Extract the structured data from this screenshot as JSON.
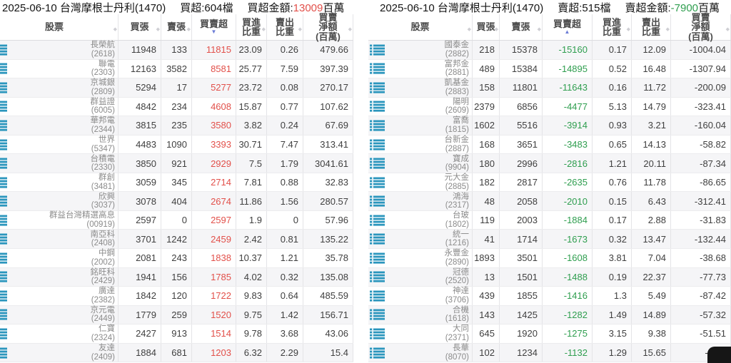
{
  "colors": {
    "red": "#e2504a",
    "green": "#2f9e4f",
    "icon_blue": "#2b96bd",
    "sort_active_blue": "#6b7cd6"
  },
  "icons": {
    "row": "list-icon",
    "sort_desc": "▼",
    "sort_asc": "▲",
    "sort_idle": "◆"
  },
  "tables": [
    {
      "id": "buy",
      "net_color": "net-red",
      "title": {
        "heading": "2025-06-10 台灣摩根士丹利(1470)",
        "count": "買超:604檔",
        "amount_label": "買超金額:",
        "amount_value": "13009",
        "amount_unit": "百萬",
        "amount_class": "amount-red"
      },
      "columns": [
        {
          "lines": [
            "股票"
          ]
        },
        {
          "lines": [
            "買張"
          ]
        },
        {
          "lines": [
            "賣張"
          ]
        },
        {
          "lines": [
            "買賣超"
          ],
          "sorted": "desc"
        },
        {
          "lines": [
            "買進",
            "比重"
          ]
        },
        {
          "lines": [
            "賣出",
            "比重"
          ]
        },
        {
          "lines": [
            "買賣",
            "淨額",
            "(百萬)"
          ]
        }
      ],
      "rows": [
        [
          "長榮航",
          "(2618)",
          "11948",
          "133",
          "11815",
          "23.09",
          "0.26",
          "479.66"
        ],
        [
          "聯電",
          "(2303)",
          "12163",
          "3582",
          "8581",
          "25.77",
          "7.59",
          "397.39"
        ],
        [
          "京城銀",
          "(2809)",
          "5294",
          "17",
          "5277",
          "23.72",
          "0.08",
          "270.17"
        ],
        [
          "群益證",
          "(6005)",
          "4842",
          "234",
          "4608",
          "15.87",
          "0.77",
          "107.62"
        ],
        [
          "華邦電",
          "(2344)",
          "3815",
          "235",
          "3580",
          "3.82",
          "0.24",
          "67.69"
        ],
        [
          "世界",
          "(5347)",
          "4483",
          "1090",
          "3393",
          "30.71",
          "7.47",
          "313.41"
        ],
        [
          "台積電",
          "(2330)",
          "3850",
          "921",
          "2929",
          "7.5",
          "1.79",
          "3041.61"
        ],
        [
          "群創",
          "(3481)",
          "3059",
          "345",
          "2714",
          "7.81",
          "0.88",
          "32.83"
        ],
        [
          "欣興",
          "(3037)",
          "3078",
          "404",
          "2674",
          "11.86",
          "1.56",
          "280.57"
        ],
        [
          "群益台灣精選高息",
          "(00919)",
          "2597",
          "0",
          "2597",
          "1.9",
          "0",
          "57.96"
        ],
        [
          "南亞科",
          "(2408)",
          "3701",
          "1242",
          "2459",
          "2.42",
          "0.81",
          "135.22"
        ],
        [
          "中鋼",
          "(2002)",
          "2081",
          "243",
          "1838",
          "10.37",
          "1.21",
          "35.78"
        ],
        [
          "銘旺科",
          "(2429)",
          "1941",
          "156",
          "1785",
          "4.02",
          "0.32",
          "135.08"
        ],
        [
          "廣達",
          "(2382)",
          "1842",
          "120",
          "1722",
          "9.83",
          "0.64",
          "485.59"
        ],
        [
          "京元電",
          "(2449)",
          "1779",
          "259",
          "1520",
          "9.75",
          "1.42",
          "156.71"
        ],
        [
          "仁寶",
          "(2324)",
          "2427",
          "913",
          "1514",
          "9.78",
          "3.68",
          "43.06"
        ],
        [
          "友達",
          "(2409)",
          "1884",
          "681",
          "1203",
          "6.32",
          "2.29",
          "15.4"
        ]
      ]
    },
    {
      "id": "sell",
      "net_color": "net-green",
      "title": {
        "heading": "2025-06-10 台灣摩根士丹利(1470)",
        "count": "賣超:515檔",
        "amount_label": "賣超金額:",
        "amount_value": "-7900",
        "amount_unit": "百萬",
        "amount_class": "amount-green"
      },
      "columns": [
        {
          "lines": [
            "股票"
          ]
        },
        {
          "lines": [
            "買張"
          ]
        },
        {
          "lines": [
            "賣張"
          ]
        },
        {
          "lines": [
            "買賣超"
          ],
          "sorted": "asc"
        },
        {
          "lines": [
            "買進",
            "比重"
          ]
        },
        {
          "lines": [
            "賣出",
            "比重"
          ]
        },
        {
          "lines": [
            "買賣",
            "淨額",
            "(百萬)"
          ]
        }
      ],
      "rows": [
        [
          "國泰金",
          "(2882)",
          "218",
          "15378",
          "-15160",
          "0.17",
          "12.09",
          "-1004.04"
        ],
        [
          "富邦金",
          "(2881)",
          "489",
          "15384",
          "-14895",
          "0.52",
          "16.48",
          "-1307.94"
        ],
        [
          "凱基金",
          "(2883)",
          "158",
          "11801",
          "-11643",
          "0.16",
          "11.72",
          "-200.09"
        ],
        [
          "陽明",
          "(2609)",
          "2379",
          "6856",
          "-4477",
          "5.13",
          "14.79",
          "-323.41"
        ],
        [
          "富喬",
          "(1815)",
          "1602",
          "5516",
          "-3914",
          "0.93",
          "3.21",
          "-160.04"
        ],
        [
          "台新金",
          "(2887)",
          "168",
          "3651",
          "-3483",
          "0.65",
          "14.13",
          "-58.82"
        ],
        [
          "寶成",
          "(9904)",
          "180",
          "2996",
          "-2816",
          "1.21",
          "20.11",
          "-87.34"
        ],
        [
          "元大金",
          "(2885)",
          "182",
          "2817",
          "-2635",
          "0.76",
          "11.78",
          "-86.65"
        ],
        [
          "鴻海",
          "(2317)",
          "48",
          "2058",
          "-2010",
          "0.15",
          "6.43",
          "-312.41"
        ],
        [
          "台玻",
          "(1802)",
          "119",
          "2003",
          "-1884",
          "0.17",
          "2.88",
          "-31.83"
        ],
        [
          "統一",
          "(1216)",
          "41",
          "1714",
          "-1673",
          "0.32",
          "13.47",
          "-132.44"
        ],
        [
          "永豐金",
          "(2890)",
          "1893",
          "3501",
          "-1608",
          "3.81",
          "7.04",
          "-38.68"
        ],
        [
          "冠德",
          "(2520)",
          "13",
          "1501",
          "-1488",
          "0.19",
          "22.37",
          "-77.73"
        ],
        [
          "神達",
          "(3706)",
          "439",
          "1855",
          "-1416",
          "1.3",
          "5.49",
          "-87.42"
        ],
        [
          "合機",
          "(1618)",
          "143",
          "1425",
          "-1282",
          "1.49",
          "14.89",
          "-57.32"
        ],
        [
          "大同",
          "(2371)",
          "645",
          "1920",
          "-1275",
          "3.15",
          "9.38",
          "-51.51"
        ],
        [
          "長華",
          "(8070)",
          "102",
          "1234",
          "-1132",
          "1.29",
          "15.65",
          "-47.9"
        ]
      ]
    }
  ]
}
